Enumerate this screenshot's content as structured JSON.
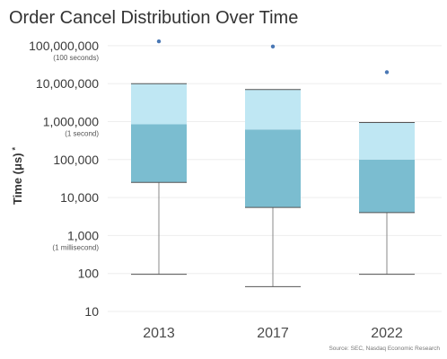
{
  "chart_data": {
    "type": "box",
    "title": "Order Cancel Distribution Over Time",
    "ylabel": "Time (μs)",
    "ylabel_marker": "*",
    "yscale": "log",
    "ylim": [
      10,
      100000000
    ],
    "yticks": [
      {
        "value": 100000000,
        "label": "100,000,000",
        "sublabel": "(100 seconds)"
      },
      {
        "value": 10000000,
        "label": "10,000,000",
        "sublabel": ""
      },
      {
        "value": 1000000,
        "label": "1,000,000",
        "sublabel": "(1 second)"
      },
      {
        "value": 100000,
        "label": "100,000",
        "sublabel": ""
      },
      {
        "value": 10000,
        "label": "10,000",
        "sublabel": ""
      },
      {
        "value": 1000,
        "label": "1,000",
        "sublabel": "(1 millisecond)"
      },
      {
        "value": 100,
        "label": "100",
        "sublabel": ""
      },
      {
        "value": 10,
        "label": "10",
        "sublabel": ""
      }
    ],
    "categories": [
      "2013",
      "2017",
      "2022"
    ],
    "boxes": [
      {
        "category": "2013",
        "whisker_low": 95,
        "q1": 25000,
        "median": 850000,
        "q3": 10000000,
        "whisker_high": 10000000,
        "outliers": [
          130000000
        ]
      },
      {
        "category": "2017",
        "whisker_low": 45,
        "q1": 5500,
        "median": 620000,
        "q3": 7000000,
        "whisker_high": 7000000,
        "outliers": [
          95000000
        ]
      },
      {
        "category": "2022",
        "whisker_low": 95,
        "q1": 4000,
        "median": 100000,
        "q3": 950000,
        "whisker_high": 950000,
        "outliers": [
          20000000
        ]
      }
    ],
    "colors": {
      "lower_box": "#7bbdd0",
      "upper_box": "#bfe7f3",
      "outlier": "#4a78b5",
      "whisker": "#888888",
      "grid": "#eeeeee"
    },
    "grid": true,
    "source": "Source: SEC, Nasdaq Economic Research"
  }
}
